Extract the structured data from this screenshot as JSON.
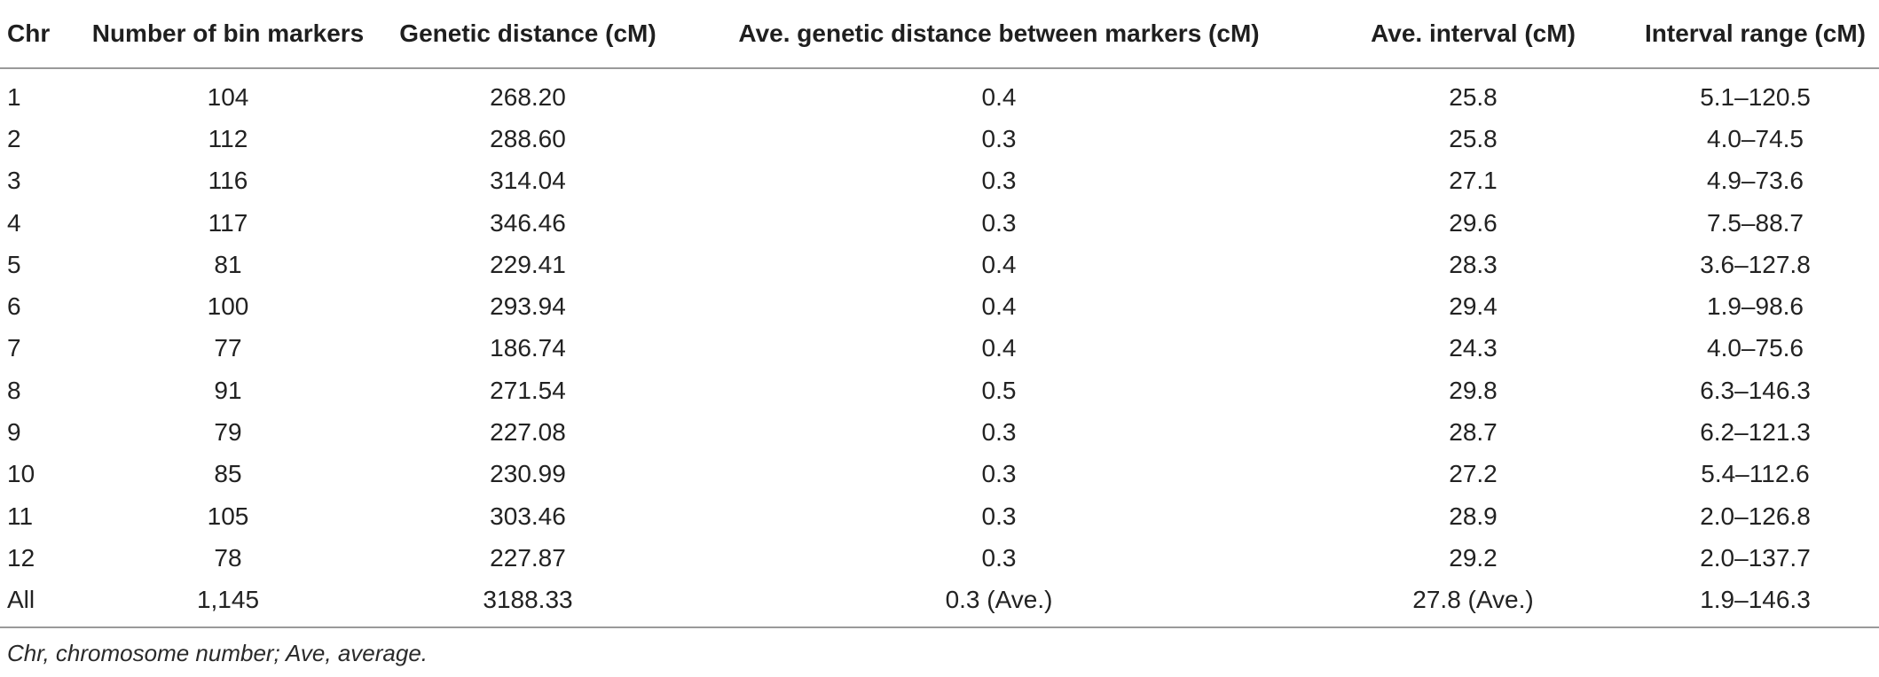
{
  "table": {
    "headers": [
      "Chr",
      "Number of bin markers",
      "Genetic distance (cM)",
      "Ave. genetic distance between markers (cM)",
      "Ave. interval (cM)",
      "Interval range (cM)"
    ],
    "rows": [
      [
        "1",
        "104",
        "268.20",
        "0.4",
        "25.8",
        "5.1–120.5"
      ],
      [
        "2",
        "112",
        "288.60",
        "0.3",
        "25.8",
        "4.0–74.5"
      ],
      [
        "3",
        "116",
        "314.04",
        "0.3",
        "27.1",
        "4.9–73.6"
      ],
      [
        "4",
        "117",
        "346.46",
        "0.3",
        "29.6",
        "7.5–88.7"
      ],
      [
        "5",
        "81",
        "229.41",
        "0.4",
        "28.3",
        "3.6–127.8"
      ],
      [
        "6",
        "100",
        "293.94",
        "0.4",
        "29.4",
        "1.9–98.6"
      ],
      [
        "7",
        "77",
        "186.74",
        "0.4",
        "24.3",
        "4.0–75.6"
      ],
      [
        "8",
        "91",
        "271.54",
        "0.5",
        "29.8",
        "6.3–146.3"
      ],
      [
        "9",
        "79",
        "227.08",
        "0.3",
        "28.7",
        "6.2–121.3"
      ],
      [
        "10",
        "85",
        "230.99",
        "0.3",
        "27.2",
        "5.4–112.6"
      ],
      [
        "11",
        "105",
        "303.46",
        "0.3",
        "28.9",
        "2.0–126.8"
      ],
      [
        "12",
        "78",
        "227.87",
        "0.3",
        "29.2",
        "2.0–137.7"
      ],
      [
        "All",
        "1,145",
        "3188.33",
        "0.3 (Ave.)",
        "27.8 (Ave.)",
        "1.9–146.3"
      ]
    ]
  },
  "footnote": "Chr, chromosome number; Ave, average."
}
